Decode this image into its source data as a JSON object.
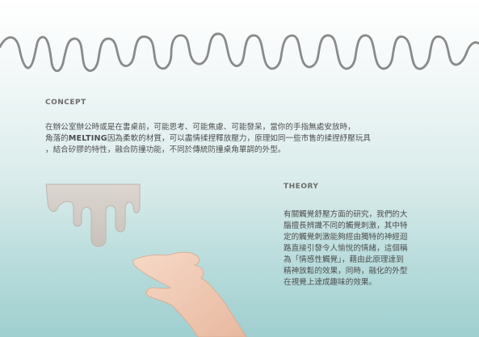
{
  "concept": {
    "title": "CONCEPT",
    "line1": "在辦公室辦公時或是在書桌前，可能思考、可能焦慮、可能發呆，當你的手指無處安放時，",
    "line2_pre": "角落的",
    "brand": "MELTING",
    "line2_post": "因為柔軟的材質，可以盡情揉捏釋放壓力，原理如同一些市售的揉捏紓壓玩具",
    "line3": "，結合矽膠的特性，融合防撞功能，不同於傳統防撞桌角單調的外型。"
  },
  "theory": {
    "title": "THEORY",
    "lines": [
      "有關觸覺舒壓方面的研究，我們的大",
      "腦擅長辨識不同的觸覺刺激，其中特",
      "定的觸覺刺激能夠經由獨特的神經迴",
      "路直接引發令人愉悅的情緒，這個稱",
      "為「情感性觸覺」，藉由此原理達到",
      "精神放鬆的效果，同時，融化的外型",
      "在視覺上達成趣味的效果。"
    ]
  },
  "colors": {
    "wave": "#8a8a8a",
    "melt": "#d6d0ca",
    "skin": "#f1cdb8"
  },
  "icons": {
    "decoration": "squiggle-line-icon",
    "product": "melting-corner-icon",
    "hand": "hand-icon"
  }
}
